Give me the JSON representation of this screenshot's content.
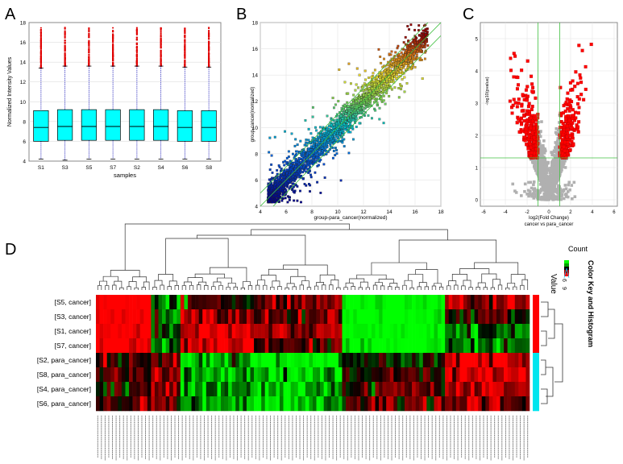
{
  "chart_data": [
    {
      "panel": "A",
      "type": "box",
      "ylabel": "Normalized Intensity Values",
      "xlabel": "samples",
      "categories": [
        "S1",
        "S3",
        "S5",
        "S7",
        "S2",
        "S4",
        "S6",
        "S8"
      ],
      "yticks": [
        4,
        6,
        8,
        10,
        12,
        14,
        16,
        18
      ],
      "ylim": [
        4,
        18
      ],
      "boxes": [
        {
          "q1": 6.0,
          "median": 7.4,
          "q3": 9.1,
          "whisker_low": 4.2,
          "whisker_high": 13.4,
          "max": 17.5
        },
        {
          "q1": 6.1,
          "median": 7.5,
          "q3": 9.2,
          "whisker_low": 4.1,
          "whisker_high": 13.6,
          "max": 17.5
        },
        {
          "q1": 6.1,
          "median": 7.5,
          "q3": 9.2,
          "whisker_low": 4.2,
          "whisker_high": 13.6,
          "max": 17.5
        },
        {
          "q1": 6.1,
          "median": 7.5,
          "q3": 9.2,
          "whisker_low": 4.2,
          "whisker_high": 13.6,
          "max": 17.5
        },
        {
          "q1": 6.1,
          "median": 7.5,
          "q3": 9.2,
          "whisker_low": 4.2,
          "whisker_high": 13.6,
          "max": 17.5
        },
        {
          "q1": 6.1,
          "median": 7.5,
          "q3": 9.2,
          "whisker_low": 4.2,
          "whisker_high": 13.6,
          "max": 17.5
        },
        {
          "q1": 6.0,
          "median": 7.4,
          "q3": 9.1,
          "whisker_low": 4.2,
          "whisker_high": 13.5,
          "max": 17.5
        },
        {
          "q1": 6.0,
          "median": 7.4,
          "q3": 9.1,
          "whisker_low": 4.2,
          "whisker_high": 13.5,
          "max": 17.5
        }
      ],
      "box_color": "#00ffff",
      "outlier_color": "#e00000",
      "whisker_color": "#3030c0"
    },
    {
      "panel": "B",
      "type": "scatter",
      "xlabel": "group-para_cancer(normalized)",
      "ylabel": "group-cancer(normalized)",
      "xticks": [
        4,
        6,
        8,
        10,
        12,
        14,
        16,
        18
      ],
      "yticks": [
        4,
        6,
        8,
        10,
        12,
        14,
        16,
        18
      ],
      "xlim": [
        4,
        18
      ],
      "ylim": [
        4,
        18
      ],
      "fold_lines_log2": [
        -1,
        0,
        1
      ],
      "line_color": "#40c040"
    },
    {
      "panel": "C",
      "type": "scatter",
      "xlabel": "log2(Fold Change)",
      "xlabel2": "cancer vs para_cancer",
      "ylabel": "-log10(pvalue)",
      "xticks": [
        -6,
        -4,
        -2,
        0,
        2,
        4,
        6
      ],
      "yticks": [
        0,
        1,
        2,
        3,
        4,
        5
      ],
      "xlim": [
        -6.3,
        6.3
      ],
      "ylim": [
        -0.2,
        5.5
      ],
      "fc_thresholds": [
        -1,
        1
      ],
      "p_threshold": 1.3,
      "sig_color": "#ff0000",
      "nonsig_color": "#b0b0b0"
    },
    {
      "panel": "D",
      "type": "heatmap",
      "rows": [
        "[S5, cancer]",
        "[S3, cancer]",
        "[S1, cancer]",
        "[S7, cancer]",
        "[S2, para_cancer]",
        "[S8, para_cancer]",
        "[S4, para_cancer]",
        "[S6, para_cancer]"
      ],
      "group_colors": [
        "#ff0000",
        "#ff0000",
        "#ff0000",
        "#ff0000",
        "#00e5ee",
        "#00e5ee",
        "#00e5ee",
        "#00e5ee"
      ],
      "n_columns": 118,
      "column_clusters": [
        {
          "width": 15,
          "pattern": [
            1,
            1,
            1,
            1,
            0.2,
            0.3,
            0.1,
            0.2
          ]
        },
        {
          "width": 8,
          "pattern": [
            -0.4,
            -0.3,
            -0.2,
            -0.3,
            0.5,
            0.6,
            0.4,
            0.5
          ]
        },
        {
          "width": 20,
          "pattern": [
            0.2,
            0.7,
            0.9,
            0.9,
            -0.7,
            -0.6,
            -0.5,
            -0.6
          ]
        },
        {
          "width": 24,
          "pattern": [
            0.6,
            0.4,
            0.6,
            0.3,
            -0.9,
            -0.8,
            -0.8,
            -0.7
          ]
        },
        {
          "width": 28,
          "pattern": [
            -1,
            -1,
            -1,
            -1,
            -0.1,
            0.1,
            0.2,
            0.4
          ]
        },
        {
          "width": 23,
          "pattern": [
            0.7,
            0.1,
            -0.3,
            -0.4,
            0.9,
            0.8,
            0.7,
            0.6
          ]
        }
      ],
      "color_low": "#00ff00",
      "color_mid": "#000000",
      "color_high": "#ff0000",
      "color_key": {
        "title": "Color Key and Histogram",
        "count_label": "Count",
        "value_label": "Value",
        "ticks": [
          "6",
          "9"
        ]
      }
    }
  ],
  "panel_letters": {
    "a": "A",
    "b": "B",
    "c": "C",
    "d": "D"
  }
}
